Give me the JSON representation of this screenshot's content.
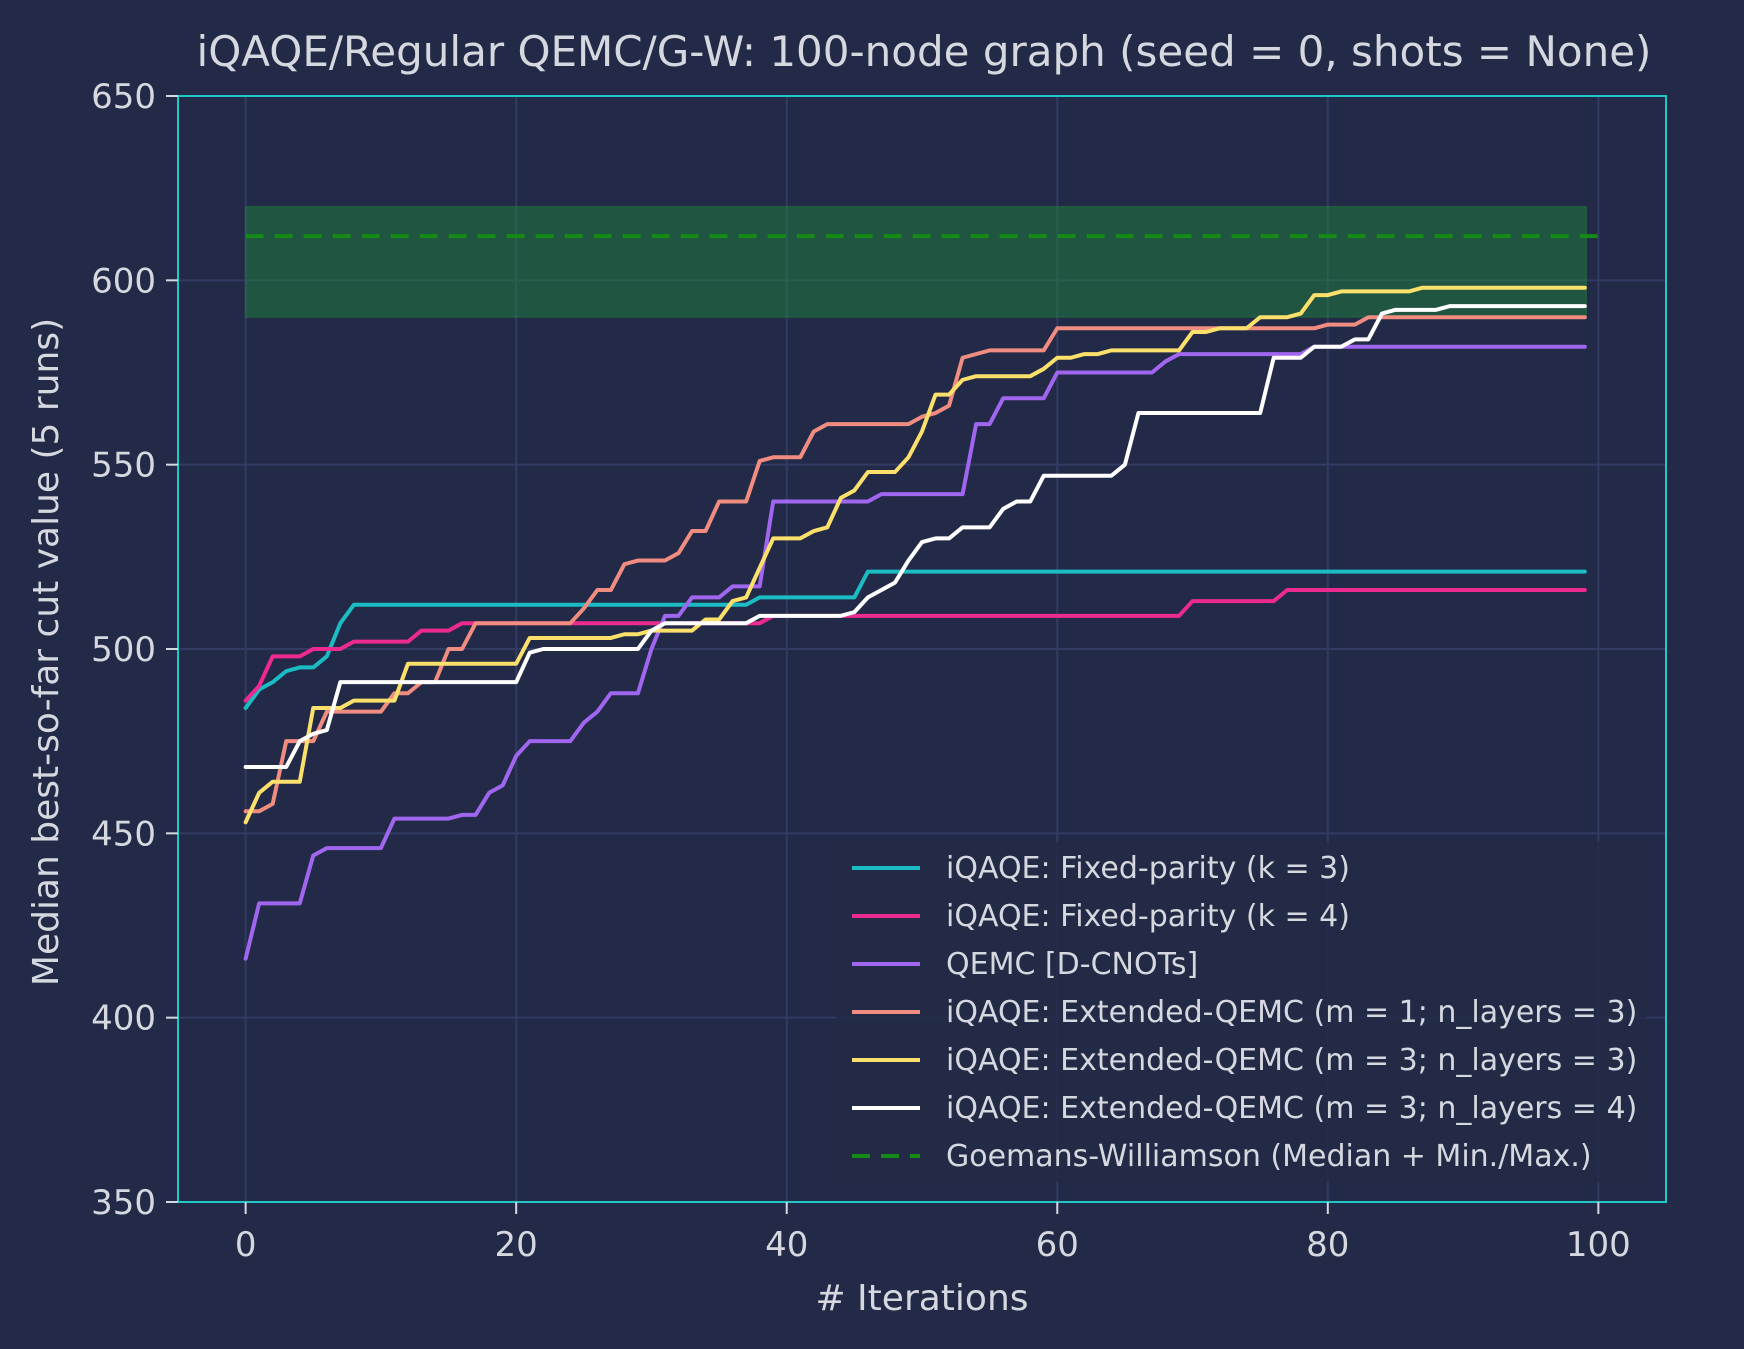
{
  "chart_data": {
    "type": "line",
    "title": "iQAQE/Regular QEMC/G-W: 100-node graph (seed = 0, shots = None)",
    "xlabel": "# Iterations",
    "ylabel": "Median best-so-far cut value (5 runs)",
    "xlim": [
      -5,
      105
    ],
    "ylim": [
      350,
      650
    ],
    "xticks": [
      0,
      20,
      40,
      60,
      80,
      100
    ],
    "yticks": [
      350,
      400,
      450,
      500,
      550,
      600,
      650
    ],
    "xtick_labels": [
      "0",
      "20",
      "40",
      "60",
      "80",
      "100"
    ],
    "ytick_labels": [
      "350",
      "400",
      "450",
      "500",
      "550",
      "600",
      "650"
    ],
    "grid": true,
    "legend_position": "lower-right",
    "colors": {
      "background": "#222a47",
      "frame": "#1fc7c7",
      "grid": "#323c63",
      "text": "#d6d8df"
    },
    "series": [
      {
        "name": "iQAQE: Fixed-parity (k = 3)",
        "color": "#1bbcc4",
        "points": [
          [
            0,
            484
          ],
          [
            1,
            489
          ],
          [
            2,
            491
          ],
          [
            3,
            494
          ],
          [
            4,
            495
          ],
          [
            5,
            495
          ],
          [
            6,
            498
          ],
          [
            7,
            507
          ],
          [
            8,
            512
          ],
          [
            36,
            512
          ],
          [
            37,
            512
          ],
          [
            38,
            514
          ],
          [
            45,
            514
          ],
          [
            46,
            521
          ],
          [
            99,
            521
          ]
        ]
      },
      {
        "name": "iQAQE: Fixed-parity (k = 4)",
        "color": "#ec2a8f",
        "points": [
          [
            0,
            486
          ],
          [
            1,
            490
          ],
          [
            2,
            498
          ],
          [
            4,
            498
          ],
          [
            5,
            500
          ],
          [
            7,
            500
          ],
          [
            8,
            502
          ],
          [
            12,
            502
          ],
          [
            13,
            505
          ],
          [
            15,
            505
          ],
          [
            16,
            507
          ],
          [
            38,
            507
          ],
          [
            39,
            509
          ],
          [
            69,
            509
          ],
          [
            70,
            513
          ],
          [
            76,
            513
          ],
          [
            77,
            516
          ],
          [
            99,
            516
          ]
        ]
      },
      {
        "name": "QEMC [D-CNOTs]",
        "color": "#a066f0",
        "points": [
          [
            0,
            416
          ],
          [
            1,
            431
          ],
          [
            4,
            431
          ],
          [
            5,
            444
          ],
          [
            6,
            446
          ],
          [
            10,
            446
          ],
          [
            11,
            454
          ],
          [
            15,
            454
          ],
          [
            16,
            455
          ],
          [
            17,
            455
          ],
          [
            18,
            461
          ],
          [
            19,
            463
          ],
          [
            20,
            471
          ],
          [
            21,
            475
          ],
          [
            24,
            475
          ],
          [
            25,
            480
          ],
          [
            26,
            483
          ],
          [
            27,
            488
          ],
          [
            29,
            488
          ],
          [
            30,
            500
          ],
          [
            31,
            509
          ],
          [
            32,
            509
          ],
          [
            33,
            514
          ],
          [
            35,
            514
          ],
          [
            36,
            517
          ],
          [
            38,
            517
          ],
          [
            39,
            540
          ],
          [
            46,
            540
          ],
          [
            47,
            542
          ],
          [
            53,
            542
          ],
          [
            54,
            561
          ],
          [
            55,
            561
          ],
          [
            56,
            568
          ],
          [
            59,
            568
          ],
          [
            60,
            575
          ],
          [
            64,
            575
          ],
          [
            65,
            575
          ],
          [
            67,
            575
          ],
          [
            68,
            578
          ],
          [
            69,
            580
          ],
          [
            78,
            580
          ],
          [
            79,
            582
          ],
          [
            99,
            582
          ]
        ]
      },
      {
        "name": "iQAQE: Extended-QEMC (m = 1; n_layers = 3)",
        "color": "#f08c80",
        "points": [
          [
            0,
            456
          ],
          [
            1,
            456
          ],
          [
            2,
            458
          ],
          [
            3,
            475
          ],
          [
            5,
            475
          ],
          [
            6,
            483
          ],
          [
            10,
            483
          ],
          [
            11,
            488
          ],
          [
            12,
            488
          ],
          [
            13,
            491
          ],
          [
            14,
            491
          ],
          [
            15,
            500
          ],
          [
            16,
            500
          ],
          [
            17,
            507
          ],
          [
            24,
            507
          ],
          [
            25,
            511
          ],
          [
            26,
            516
          ],
          [
            27,
            516
          ],
          [
            28,
            523
          ],
          [
            29,
            524
          ],
          [
            31,
            524
          ],
          [
            32,
            526
          ],
          [
            33,
            532
          ],
          [
            34,
            532
          ],
          [
            35,
            540
          ],
          [
            37,
            540
          ],
          [
            38,
            551
          ],
          [
            39,
            552
          ],
          [
            41,
            552
          ],
          [
            42,
            559
          ],
          [
            43,
            561
          ],
          [
            48,
            561
          ],
          [
            49,
            561
          ],
          [
            50,
            563
          ],
          [
            51,
            564
          ],
          [
            52,
            566
          ],
          [
            53,
            579
          ],
          [
            55,
            581
          ],
          [
            59,
            581
          ],
          [
            60,
            587
          ],
          [
            79,
            587
          ],
          [
            80,
            588
          ],
          [
            82,
            588
          ],
          [
            83,
            590
          ],
          [
            99,
            590
          ]
        ]
      },
      {
        "name": "iQAQE: Extended-QEMC (m = 3; n_layers = 3)",
        "color": "#fbe06c",
        "points": [
          [
            0,
            453
          ],
          [
            1,
            461
          ],
          [
            2,
            464
          ],
          [
            4,
            464
          ],
          [
            5,
            484
          ],
          [
            7,
            484
          ],
          [
            8,
            486
          ],
          [
            11,
            486
          ],
          [
            12,
            496
          ],
          [
            20,
            496
          ],
          [
            21,
            503
          ],
          [
            27,
            503
          ],
          [
            28,
            504
          ],
          [
            29,
            504
          ],
          [
            30,
            505
          ],
          [
            33,
            505
          ],
          [
            34,
            508
          ],
          [
            35,
            508
          ],
          [
            36,
            513
          ],
          [
            37,
            514
          ],
          [
            38,
            522
          ],
          [
            39,
            530
          ],
          [
            41,
            530
          ],
          [
            42,
            532
          ],
          [
            43,
            533
          ],
          [
            44,
            541
          ],
          [
            45,
            543
          ],
          [
            46,
            548
          ],
          [
            48,
            548
          ],
          [
            49,
            552
          ],
          [
            50,
            559
          ],
          [
            51,
            569
          ],
          [
            52,
            569
          ],
          [
            53,
            573
          ],
          [
            54,
            574
          ],
          [
            58,
            574
          ],
          [
            59,
            576
          ],
          [
            60,
            579
          ],
          [
            61,
            579
          ],
          [
            62,
            580
          ],
          [
            63,
            580
          ],
          [
            64,
            581
          ],
          [
            69,
            581
          ],
          [
            70,
            586
          ],
          [
            71,
            586
          ],
          [
            72,
            587
          ],
          [
            74,
            587
          ],
          [
            75,
            590
          ],
          [
            77,
            590
          ],
          [
            78,
            591
          ],
          [
            79,
            596
          ],
          [
            80,
            596
          ],
          [
            81,
            597
          ],
          [
            86,
            597
          ],
          [
            87,
            598
          ],
          [
            99,
            598
          ]
        ]
      },
      {
        "name": "iQAQE: Extended-QEMC (m = 3; n_layers = 4)",
        "color": "#ffffff",
        "points": [
          [
            0,
            468
          ],
          [
            3,
            468
          ],
          [
            4,
            475
          ],
          [
            5,
            477
          ],
          [
            6,
            478
          ],
          [
            7,
            491
          ],
          [
            20,
            491
          ],
          [
            21,
            499
          ],
          [
            22,
            500
          ],
          [
            29,
            500
          ],
          [
            30,
            505
          ],
          [
            31,
            507
          ],
          [
            37,
            507
          ],
          [
            38,
            509
          ],
          [
            44,
            509
          ],
          [
            45,
            510
          ],
          [
            46,
            514
          ],
          [
            47,
            516
          ],
          [
            48,
            518
          ],
          [
            49,
            524
          ],
          [
            50,
            529
          ],
          [
            51,
            530
          ],
          [
            52,
            530
          ],
          [
            53,
            533
          ],
          [
            55,
            533
          ],
          [
            56,
            538
          ],
          [
            57,
            540
          ],
          [
            58,
            540
          ],
          [
            59,
            547
          ],
          [
            64,
            547
          ],
          [
            65,
            550
          ],
          [
            66,
            564
          ],
          [
            75,
            564
          ],
          [
            76,
            579
          ],
          [
            78,
            579
          ],
          [
            79,
            582
          ],
          [
            81,
            582
          ],
          [
            82,
            584
          ],
          [
            83,
            584
          ],
          [
            84,
            591
          ],
          [
            85,
            592
          ],
          [
            88,
            592
          ],
          [
            89,
            593
          ],
          [
            99,
            593
          ]
        ]
      },
      {
        "name": "Goemans-Williamson (Median + Min./Max.)",
        "color": "#168a16",
        "style": "dashed",
        "median": 612,
        "min": 590,
        "max": 620,
        "x_range": [
          0,
          100
        ]
      }
    ]
  }
}
